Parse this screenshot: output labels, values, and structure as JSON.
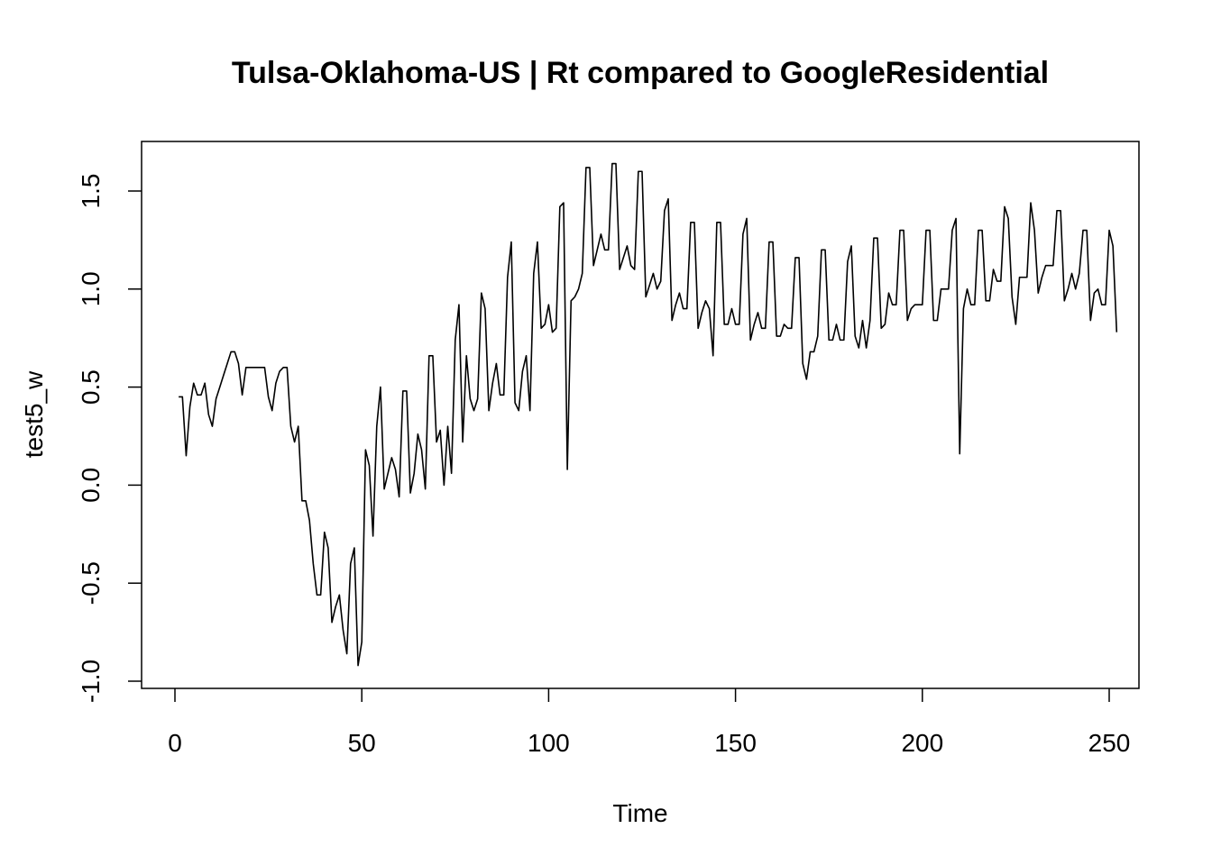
{
  "chart_data": {
    "type": "line",
    "title": "Tulsa-Oklahoma-US | Rt compared to GoogleResidential",
    "xlabel": "Time",
    "ylabel": "test5_w",
    "xlim": [
      0,
      250
    ],
    "ylim": [
      -1.0,
      1.5
    ],
    "x_ticks": [
      "0",
      "50",
      "100",
      "150",
      "200",
      "250"
    ],
    "y_ticks": [
      "-1.0",
      "-0.5",
      "0.0",
      "0.5",
      "1.0",
      "1.5"
    ],
    "grid": false,
    "series": [
      {
        "x_start": 1,
        "color": "#000000",
        "values": [
          0.45,
          0.45,
          0.15,
          0.4,
          0.52,
          0.46,
          0.46,
          0.52,
          0.36,
          0.3,
          0.44,
          0.5,
          0.56,
          0.62,
          0.68,
          0.68,
          0.62,
          0.46,
          0.6,
          0.6,
          0.6,
          0.6,
          0.6,
          0.6,
          0.45,
          0.38,
          0.52,
          0.58,
          0.6,
          0.6,
          0.3,
          0.22,
          0.3,
          -0.08,
          -0.08,
          -0.18,
          -0.4,
          -0.56,
          -0.56,
          -0.24,
          -0.32,
          -0.7,
          -0.62,
          -0.56,
          -0.74,
          -0.86,
          -0.4,
          -0.32,
          -0.92,
          -0.8,
          0.18,
          0.1,
          -0.26,
          0.3,
          0.5,
          -0.02,
          0.06,
          0.14,
          0.08,
          -0.06,
          0.48,
          0.48,
          -0.04,
          0.06,
          0.26,
          0.18,
          -0.02,
          0.66,
          0.66,
          0.22,
          0.28,
          0.0,
          0.3,
          0.06,
          0.74,
          0.92,
          0.22,
          0.66,
          0.44,
          0.38,
          0.44,
          0.98,
          0.9,
          0.38,
          0.52,
          0.62,
          0.46,
          0.46,
          1.06,
          1.24,
          0.42,
          0.38,
          0.58,
          0.66,
          0.38,
          1.08,
          1.24,
          0.8,
          0.82,
          0.92,
          0.78,
          0.8,
          1.42,
          1.44,
          0.08,
          0.94,
          0.96,
          1.0,
          1.08,
          1.62,
          1.62,
          1.12,
          1.2,
          1.28,
          1.2,
          1.2,
          1.64,
          1.64,
          1.1,
          1.16,
          1.22,
          1.12,
          1.1,
          1.6,
          1.6,
          0.96,
          1.02,
          1.08,
          1.0,
          1.04,
          1.4,
          1.46,
          0.84,
          0.92,
          0.98,
          0.9,
          0.9,
          1.34,
          1.34,
          0.8,
          0.88,
          0.94,
          0.9,
          0.66,
          1.34,
          1.34,
          0.82,
          0.82,
          0.9,
          0.82,
          0.82,
          1.28,
          1.36,
          0.74,
          0.82,
          0.88,
          0.8,
          0.8,
          1.24,
          1.24,
          0.76,
          0.76,
          0.82,
          0.8,
          0.8,
          1.16,
          1.16,
          0.62,
          0.54,
          0.68,
          0.68,
          0.76,
          1.2,
          1.2,
          0.74,
          0.74,
          0.82,
          0.74,
          0.74,
          1.14,
          1.22,
          0.76,
          0.7,
          0.84,
          0.7,
          0.84,
          1.26,
          1.26,
          0.8,
          0.82,
          0.98,
          0.92,
          0.92,
          1.3,
          1.3,
          0.84,
          0.9,
          0.92,
          0.92,
          0.92,
          1.3,
          1.3,
          0.84,
          0.84,
          1.0,
          1.0,
          1.0,
          1.3,
          1.36,
          0.16,
          0.9,
          1.0,
          0.92,
          0.92,
          1.3,
          1.3,
          0.94,
          0.94,
          1.1,
          1.04,
          1.04,
          1.42,
          1.36,
          0.96,
          0.82,
          1.06,
          1.06,
          1.06,
          1.44,
          1.3,
          0.98,
          1.06,
          1.12,
          1.12,
          1.12,
          1.4,
          1.4,
          0.94,
          1.0,
          1.08,
          1.0,
          1.08,
          1.3,
          1.3,
          0.84,
          0.98,
          1.0,
          0.92,
          0.92,
          1.3,
          1.22,
          0.78
        ]
      }
    ]
  }
}
